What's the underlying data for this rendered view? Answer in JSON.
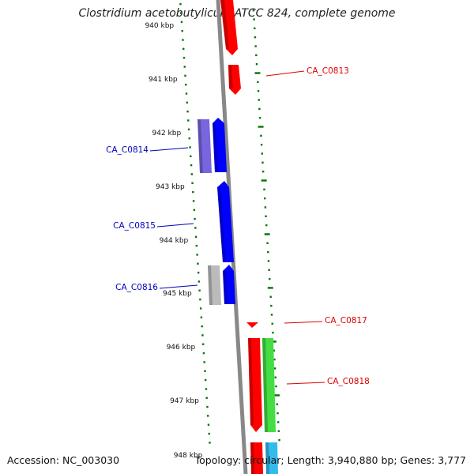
{
  "title": "Clostridium acetobutylicum ATCC 824, complete genome",
  "footer": {
    "accession": "Accession: NC_003030",
    "summary": "Topology: circular; Length: 3,940,880 bp; Genes: 3,777"
  },
  "colors": {
    "tick": "#007700",
    "backbone": "#888888",
    "red": "#ff0000",
    "blue": "#0000ff",
    "violet": "#7766dd",
    "gray": "#bbbbbb",
    "green": "#44dd44",
    "cyan": "#33bbee",
    "label_red": "#dd0000",
    "label_blue": "#0000bb"
  },
  "scale_labels": [
    {
      "text": "940 kbp",
      "kbp": 940
    },
    {
      "text": "941 kbp",
      "kbp": 941
    },
    {
      "text": "942 kbp",
      "kbp": 942
    },
    {
      "text": "943 kbp",
      "kbp": 943
    },
    {
      "text": "944 kbp",
      "kbp": 944
    },
    {
      "text": "945 kbp",
      "kbp": 945
    },
    {
      "text": "946 kbp",
      "kbp": 946
    },
    {
      "text": "947 kbp",
      "kbp": 947
    },
    {
      "text": "948 kbp",
      "kbp": 948
    }
  ],
  "gene_labels": [
    {
      "text": "CA_C0813",
      "color": "label_red"
    },
    {
      "text": "CA_C0814",
      "color": "label_blue"
    },
    {
      "text": "CA_C0815",
      "color": "label_blue"
    },
    {
      "text": "CA_C0816",
      "color": "label_blue"
    },
    {
      "text": "CA_C0817",
      "color": "label_red"
    },
    {
      "text": "CA_C0818",
      "color": "label_red"
    }
  ]
}
